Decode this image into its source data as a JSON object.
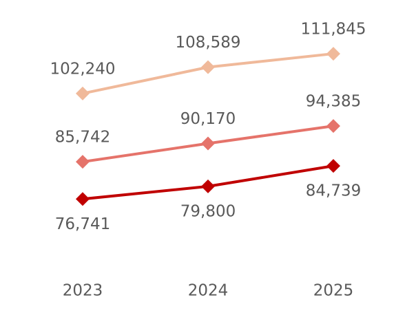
{
  "chart_data": {
    "type": "line",
    "categories": [
      "2023",
      "2024",
      "2025"
    ],
    "series": [
      {
        "color": "#f0b99a",
        "values": [
          102240,
          108589,
          111845
        ],
        "value_labels": [
          "102,240",
          "108,589",
          "111,845"
        ]
      },
      {
        "color": "#e5736a",
        "values": [
          85742,
          90170,
          94385
        ],
        "value_labels": [
          "85,742",
          "90,170",
          "94,385"
        ]
      },
      {
        "color": "#c00000",
        "values": [
          76741,
          79800,
          84739
        ],
        "value_labels": [
          "76,741",
          "79,800",
          "84,739"
        ]
      }
    ],
    "ylim": [
      60000,
      120000
    ]
  }
}
